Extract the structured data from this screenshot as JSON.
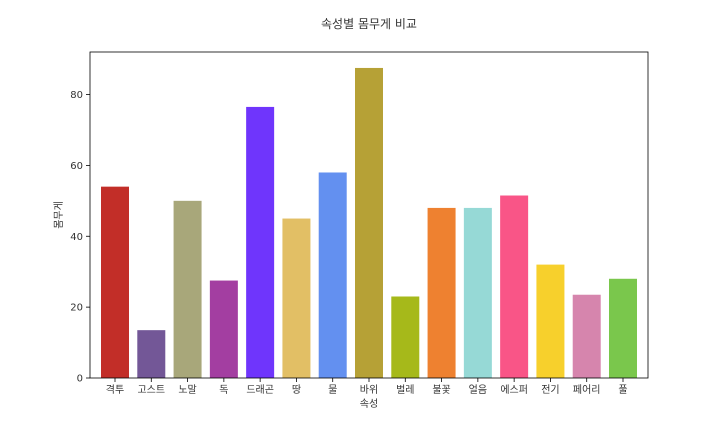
{
  "chart_data": {
    "type": "bar",
    "title": "속성별 몸무게 비교",
    "xlabel": "속성",
    "ylabel": "몸무게",
    "ylim": [
      0,
      92
    ],
    "yticks": [
      0,
      20,
      40,
      60,
      80
    ],
    "grid": false,
    "categories": [
      "격투",
      "고스트",
      "노말",
      "독",
      "드래곤",
      "땅",
      "물",
      "바위",
      "벌레",
      "불꽃",
      "얼음",
      "에스퍼",
      "전기",
      "페어리",
      "풀"
    ],
    "values": [
      54,
      13.5,
      50,
      27.5,
      76.5,
      45,
      58,
      87.5,
      23,
      48,
      48,
      51.5,
      32,
      23.5,
      28
    ],
    "colors": [
      "#C22E28",
      "#735797",
      "#A8A77A",
      "#A33EA1",
      "#6F35FC",
      "#E2BF65",
      "#6390F0",
      "#B6A136",
      "#A6B91A",
      "#EE8130",
      "#96D9D6",
      "#F95587",
      "#F7D02C",
      "#D685AD",
      "#7AC74C"
    ]
  }
}
